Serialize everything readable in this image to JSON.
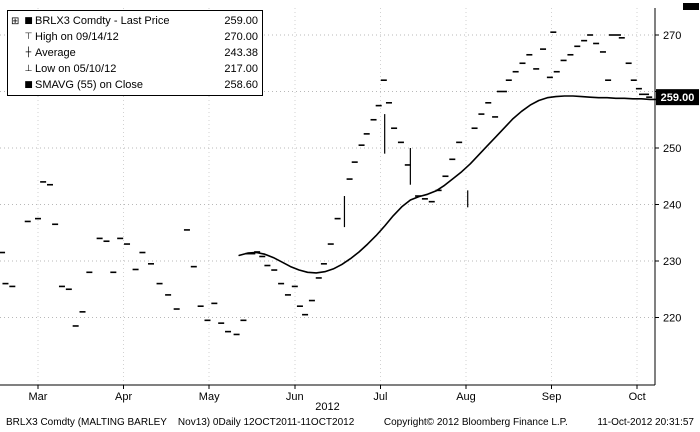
{
  "icons": {
    "tree": "⊞",
    "price": "■",
    "high": "⊤",
    "average": "┼",
    "low": "⊥",
    "sma": "■"
  },
  "colors": {
    "series": "#000000",
    "sma_line": "#000000",
    "badge_bg": "#000000",
    "badge_text": "#ffffff",
    "grid": "#b8b8b8"
  },
  "legend": {
    "rows": [
      {
        "label": "BRLX3 Comdty - Last Price",
        "value": "259.00"
      },
      {
        "label": "High on 09/14/12",
        "value": "270.00"
      },
      {
        "label": "Average",
        "value": "243.38"
      },
      {
        "label": "Low on 05/10/12",
        "value": "217.00"
      },
      {
        "label": "SMAVG (55) on Close",
        "value": "258.60"
      }
    ]
  },
  "footer": {
    "left": "BRLX3 Comdty (MALTING BARLEY    Nov13) 0Daily 12OCT2011-11OCT2012",
    "center": "Copyright© 2012 Bloomberg Finance L.P.",
    "right": "11-Oct-2012 20:31:57"
  },
  "chart_data": {
    "type": "scatter",
    "title": "BRLX3 Comdty - Last Price",
    "x_axis": {
      "labels": [
        "Mar",
        "Apr",
        "May",
        "Jun",
        "Jul",
        "Aug",
        "Sep",
        "Oct"
      ],
      "year": "2012"
    },
    "y_axis": {
      "ticks": [
        220,
        230,
        240,
        250,
        260,
        270
      ],
      "range": [
        207,
        274
      ]
    },
    "last_price": 259.0,
    "stats": {
      "high": {
        "date": "09/14/12",
        "value": 270.0
      },
      "average": 243.38,
      "low": {
        "date": "05/10/12",
        "value": 217.0
      },
      "smavg_55_close": 258.6
    },
    "series": [
      {
        "name": "Last Price (daily closes)",
        "type": "scatter",
        "points": [
          [
            -0.42,
            231.5
          ],
          [
            -0.38,
            226.0
          ],
          [
            -0.3,
            225.5
          ],
          [
            -0.12,
            237.0
          ],
          [
            0.0,
            237.5
          ],
          [
            0.06,
            244.0
          ],
          [
            0.14,
            243.5
          ],
          [
            0.2,
            236.5
          ],
          [
            0.28,
            225.5
          ],
          [
            0.36,
            225.0
          ],
          [
            0.44,
            218.5
          ],
          [
            0.52,
            221.0
          ],
          [
            0.6,
            228.0
          ],
          [
            0.72,
            234.0
          ],
          [
            0.8,
            233.5
          ],
          [
            0.88,
            228.0
          ],
          [
            0.96,
            234.0
          ],
          [
            1.04,
            233.0
          ],
          [
            1.14,
            228.5
          ],
          [
            1.22,
            231.5
          ],
          [
            1.32,
            229.5
          ],
          [
            1.42,
            226.0
          ],
          [
            1.52,
            224.0
          ],
          [
            1.62,
            221.5
          ],
          [
            1.74,
            235.5
          ],
          [
            1.82,
            229.0
          ],
          [
            1.9,
            222.0
          ],
          [
            1.98,
            219.5
          ],
          [
            2.06,
            222.5
          ],
          [
            2.14,
            219.0
          ],
          [
            2.22,
            217.5
          ],
          [
            2.32,
            217.0
          ],
          [
            2.4,
            219.5
          ],
          [
            2.48,
            231.3,
            10
          ],
          [
            2.56,
            231.6
          ],
          [
            2.62,
            230.8
          ],
          [
            2.68,
            229.2
          ],
          [
            2.76,
            228.4
          ],
          [
            2.84,
            226.0
          ],
          [
            2.92,
            224.0
          ],
          [
            3.0,
            225.5
          ],
          [
            3.06,
            222.0
          ],
          [
            3.12,
            220.5
          ],
          [
            3.2,
            223.0
          ],
          [
            3.28,
            227.0
          ],
          [
            3.34,
            229.5
          ],
          [
            3.42,
            233.0
          ],
          [
            3.5,
            237.5
          ],
          [
            3.64,
            244.5
          ],
          [
            3.7,
            247.5
          ],
          [
            3.78,
            250.5
          ],
          [
            3.84,
            252.5
          ],
          [
            3.92,
            255.0
          ],
          [
            3.98,
            257.5
          ],
          [
            4.04,
            262.0
          ],
          [
            4.1,
            258.0
          ],
          [
            4.16,
            253.5
          ],
          [
            4.24,
            251.0
          ],
          [
            4.32,
            247.0
          ],
          [
            4.44,
            241.5
          ],
          [
            4.52,
            241.0
          ],
          [
            4.6,
            240.5
          ],
          [
            4.68,
            242.5
          ],
          [
            4.76,
            245.0
          ],
          [
            4.84,
            248.0
          ],
          [
            4.92,
            251.0
          ],
          [
            5.1,
            253.5
          ],
          [
            5.18,
            256.0
          ],
          [
            5.26,
            258.0
          ],
          [
            5.34,
            255.5
          ],
          [
            5.42,
            260.0,
            10
          ],
          [
            5.5,
            262.0
          ],
          [
            5.58,
            263.5
          ],
          [
            5.66,
            265.0
          ],
          [
            5.74,
            266.5
          ],
          [
            5.82,
            264.0
          ],
          [
            5.9,
            267.5
          ],
          [
            5.98,
            262.5
          ],
          [
            6.02,
            270.5
          ],
          [
            6.06,
            263.5
          ],
          [
            6.14,
            265.5
          ],
          [
            6.22,
            266.5
          ],
          [
            6.3,
            268.0
          ],
          [
            6.38,
            269.0
          ],
          [
            6.45,
            270.0
          ],
          [
            6.52,
            268.5
          ],
          [
            6.6,
            267.0
          ],
          [
            6.66,
            262.0
          ],
          [
            6.74,
            270.0,
            12
          ],
          [
            6.82,
            269.5
          ],
          [
            6.9,
            265.0
          ],
          [
            6.96,
            262.0
          ],
          [
            7.02,
            260.5
          ],
          [
            7.08,
            259.5,
            10
          ],
          [
            7.14,
            259.0
          ]
        ]
      },
      {
        "name": "Intraday range bars",
        "type": "bars",
        "bars": [
          [
            3.58,
            236.0,
            241.5
          ],
          [
            4.05,
            249.0,
            256.0
          ],
          [
            4.35,
            243.5,
            250.0
          ],
          [
            5.02,
            239.5,
            242.5
          ]
        ]
      },
      {
        "name": "SMAVG (55) on Close",
        "type": "line",
        "last_value": 258.6,
        "points": [
          [
            2.35,
            231.0
          ],
          [
            2.45,
            231.4
          ],
          [
            2.55,
            231.5
          ],
          [
            2.65,
            231.2
          ],
          [
            2.75,
            230.6
          ],
          [
            2.85,
            229.8
          ],
          [
            2.95,
            229.0
          ],
          [
            3.05,
            228.4
          ],
          [
            3.15,
            228.0
          ],
          [
            3.25,
            227.9
          ],
          [
            3.35,
            228.1
          ],
          [
            3.45,
            228.6
          ],
          [
            3.55,
            229.4
          ],
          [
            3.65,
            230.4
          ],
          [
            3.75,
            231.6
          ],
          [
            3.85,
            233.0
          ],
          [
            3.95,
            234.5
          ],
          [
            4.05,
            236.2
          ],
          [
            4.15,
            238.0
          ],
          [
            4.25,
            239.6
          ],
          [
            4.35,
            240.8
          ],
          [
            4.45,
            241.4
          ],
          [
            4.55,
            241.8
          ],
          [
            4.65,
            242.4
          ],
          [
            4.75,
            243.4
          ],
          [
            4.85,
            244.6
          ],
          [
            4.95,
            245.8
          ],
          [
            5.05,
            247.2
          ],
          [
            5.15,
            248.8
          ],
          [
            5.25,
            250.4
          ],
          [
            5.35,
            252.0
          ],
          [
            5.45,
            253.6
          ],
          [
            5.55,
            255.2
          ],
          [
            5.65,
            256.5
          ],
          [
            5.75,
            257.6
          ],
          [
            5.85,
            258.4
          ],
          [
            5.95,
            258.9
          ],
          [
            6.05,
            259.1
          ],
          [
            6.15,
            259.2
          ],
          [
            6.25,
            259.2
          ],
          [
            6.35,
            259.1
          ],
          [
            6.45,
            259.0
          ],
          [
            6.55,
            258.9
          ],
          [
            6.65,
            258.9
          ],
          [
            6.75,
            258.8
          ],
          [
            6.85,
            258.8
          ],
          [
            6.95,
            258.7
          ],
          [
            7.05,
            258.7
          ],
          [
            7.15,
            258.6
          ],
          [
            7.22,
            258.6
          ]
        ]
      }
    ]
  }
}
